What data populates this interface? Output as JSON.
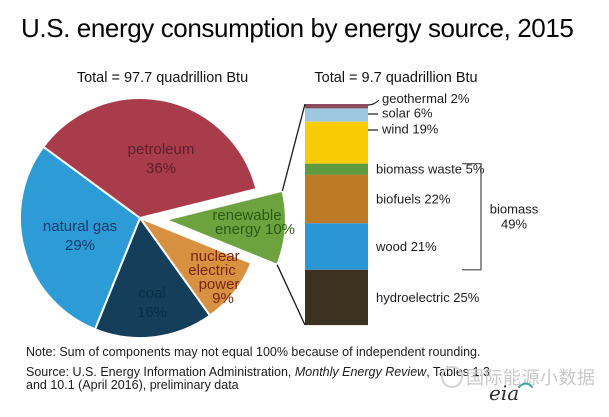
{
  "title": "U.S. energy consumption by energy source, 2015",
  "chart_data": [
    {
      "type": "pie",
      "title": "Total = 97.7 quadrillion Btu",
      "units": "percent of total",
      "start_angle_deg": 14,
      "direction": "clockwise",
      "slices": [
        {
          "label": "renewable energy",
          "value": 10,
          "color": "#6ca33e",
          "label_color": "#2c5a13",
          "exploded": true,
          "label_lines": [
            "renewable",
            "energy 10%"
          ]
        },
        {
          "label": "nuclear electric power",
          "value": 9,
          "color": "#d79141",
          "label_color": "#7a2413",
          "exploded": false,
          "label_lines": [
            "nuclear",
            "electric",
            "power",
            "9%"
          ]
        },
        {
          "label": "coal",
          "value": 16,
          "color": "#143e5a",
          "label_color": "#0c2c46",
          "exploded": false,
          "label_lines": [
            "coal",
            "16%"
          ]
        },
        {
          "label": "natural gas",
          "value": 29,
          "color": "#2d9bd6",
          "label_color": "#143a6d",
          "exploded": false,
          "label_lines": [
            "natural gas",
            "29%"
          ]
        },
        {
          "label": "petroleum",
          "value": 36,
          "color": "#a93c4b",
          "label_color": "#5e1f2b",
          "exploded": false,
          "label_lines": [
            "petroleum",
            "36%"
          ]
        }
      ]
    },
    {
      "type": "bar",
      "stacked": true,
      "title": "Total = 9.7 quadrillion Btu",
      "units": "percent of renewable energy",
      "segments_top_to_bottom": [
        {
          "label": "geothermal",
          "value": 2,
          "color": "#8c4a5e"
        },
        {
          "label": "solar",
          "value": 6,
          "color": "#9cc7de"
        },
        {
          "label": "wind",
          "value": 19,
          "color": "#f8cb05"
        },
        {
          "label": "biomass waste",
          "value": 5,
          "color": "#5d9b3e"
        },
        {
          "label": "biofuels",
          "value": 22,
          "color": "#bd7a27"
        },
        {
          "label": "wood",
          "value": 21,
          "color": "#2a96d5"
        },
        {
          "label": "hydroelectric",
          "value": 25,
          "color": "#3b331f"
        }
      ],
      "group_bracket": {
        "label": "biomass",
        "value": 49,
        "members": [
          "biomass waste",
          "biofuels",
          "wood"
        ]
      }
    }
  ],
  "note": "Note: Sum of components may not equal 100% because of independent rounding.",
  "source": {
    "prefix": "Source: U.S. Energy Information Administration, ",
    "italic": "Monthly Energy Review",
    "line1_suffix": ", Tables 1.3",
    "line2": "and 10.1 (April 2016), preliminary data"
  },
  "watermark": {
    "text": "国际能源小数据"
  },
  "logo_text": "eia"
}
